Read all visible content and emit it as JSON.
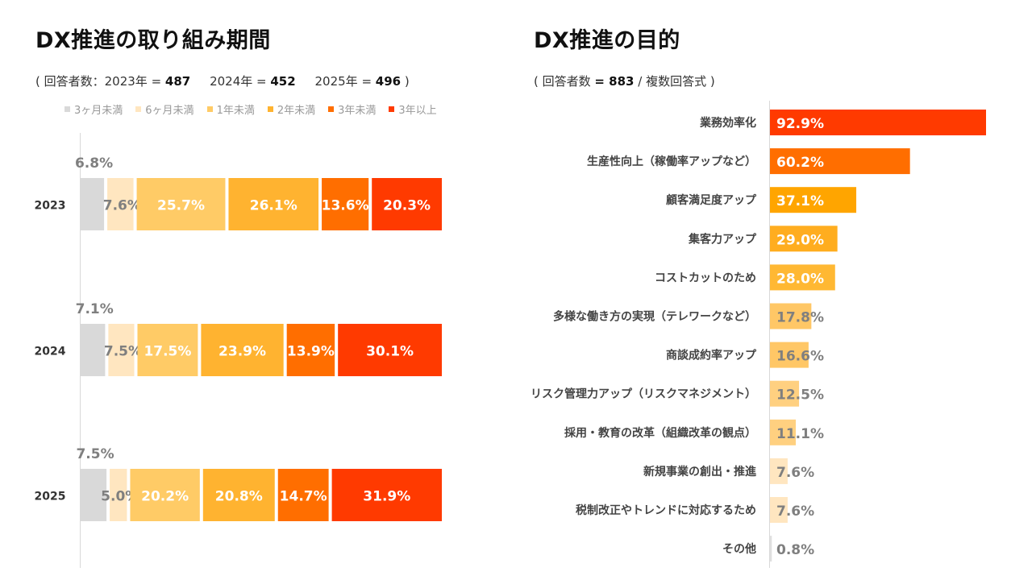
{
  "chart_data": [
    {
      "type": "bar",
      "orientation": "horizontal-stacked-100",
      "title": "DX推進の取り組み期間",
      "subtitle": {
        "prefix": "( 回答者数：",
        "groups": [
          {
            "label": "2023年 = ",
            "n": "487"
          },
          {
            "label": "2024年 = ",
            "n": "452"
          },
          {
            "label": "2025年 = ",
            "n": "496"
          }
        ],
        "suffix": " )"
      },
      "categories": [
        "2023",
        "2024",
        "2025"
      ],
      "series": [
        {
          "name": "3ヶ月未満",
          "color": "#d9d9d9",
          "values": [
            6.8,
            7.1,
            7.5
          ],
          "labels": [
            "6.8%",
            "7.1%",
            "7.5%"
          ]
        },
        {
          "name": "6ヶ月未満",
          "color": "#ffe6c0",
          "values": [
            7.6,
            7.5,
            5.0
          ],
          "labels": [
            "7.6%",
            "7.5%",
            "5.0%"
          ]
        },
        {
          "name": "1年未満",
          "color": "#ffcb66",
          "values": [
            25.7,
            17.5,
            20.2
          ],
          "labels": [
            "25.7%",
            "17.5%",
            "20.2%"
          ]
        },
        {
          "name": "2年未満",
          "color": "#ffb330",
          "values": [
            26.1,
            23.9,
            20.8
          ],
          "labels": [
            "26.1%",
            "23.9%",
            "20.8%"
          ]
        },
        {
          "name": "3年未満",
          "color": "#ff6e00",
          "values": [
            13.6,
            13.9,
            14.7
          ],
          "labels": [
            "13.6%",
            "13.9%",
            "14.7%"
          ]
        },
        {
          "name": "3年以上",
          "color": "#ff3a00",
          "values": [
            20.3,
            30.1,
            31.9
          ],
          "labels": [
            "20.3%",
            "30.1%",
            "31.9%"
          ]
        }
      ],
      "xlim": [
        0,
        100
      ],
      "legend": "top",
      "grid": false
    },
    {
      "type": "bar",
      "orientation": "horizontal",
      "title": "DX推進の目的",
      "subtitle": {
        "prefix": "( 回答者数 ",
        "n": "= 883",
        "suffix": " / 複数回答式 )"
      },
      "categories": [
        "業務効率化",
        "生産性向上（稼働率アップなど）",
        "顧客満足度アップ",
        "集客力アップ",
        "コストカットのため",
        "多様な働き方の実現（テレワークなど）",
        "商談成約率アップ",
        "リスク管理力アップ（リスクマネジメント）",
        "採用・教育の改革（組織改革の観点）",
        "新規事業の創出・推進",
        "税制改正やトレンドに対応するため",
        "その他"
      ],
      "values": [
        92.9,
        60.2,
        37.1,
        29.0,
        28.0,
        17.8,
        16.6,
        12.5,
        11.1,
        7.6,
        7.6,
        0.8
      ],
      "labels": [
        "92.9%",
        "60.2%",
        "37.1%",
        "29.0%",
        "28.0%",
        "17.8%",
        "16.6%",
        "12.5%",
        "11.1%",
        "7.6%",
        "7.6%",
        "0.8%"
      ],
      "colors": [
        "#ff3a00",
        "#ff6e00",
        "#ffa500",
        "#ffad1f",
        "#ffb833",
        "#ffc766",
        "#ffc766",
        "#ffd080",
        "#ffd080",
        "#ffe6c0",
        "#ffe6c0",
        "#e0e0e0"
      ],
      "xlim": [
        0,
        100
      ],
      "grid": false
    }
  ]
}
